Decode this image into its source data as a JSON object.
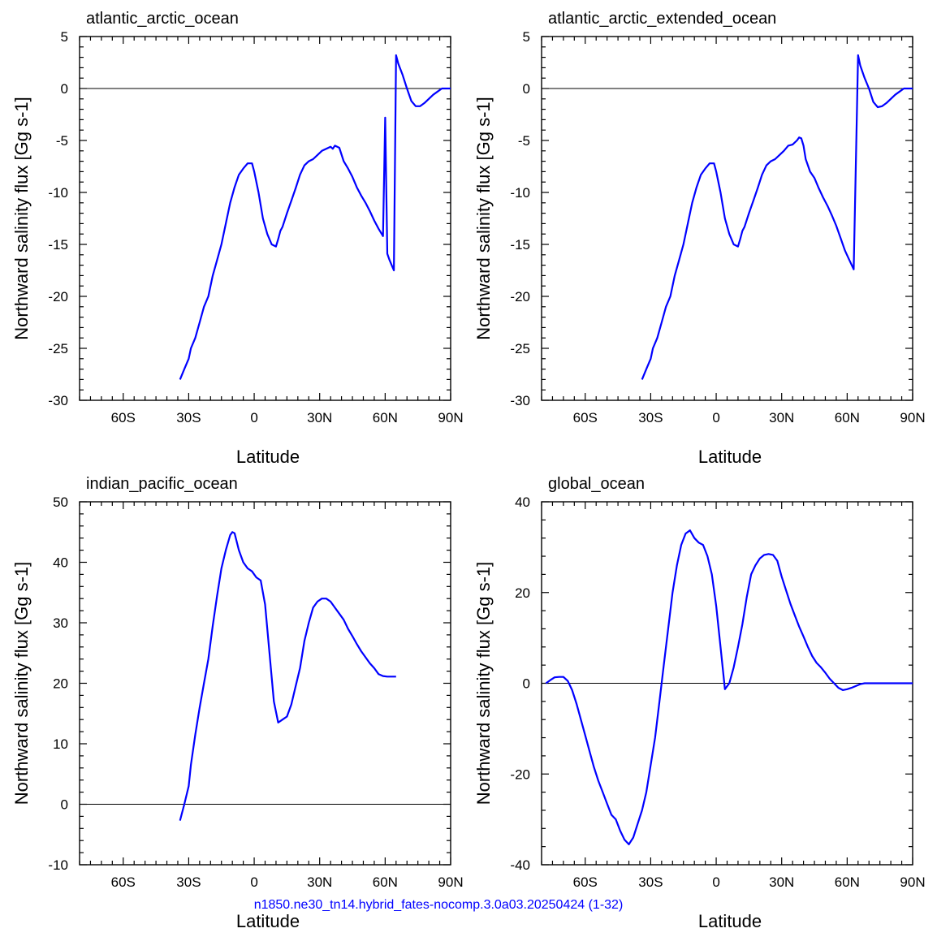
{
  "footer": "n1850.ne30_tn14.hybrid_fates-nocomp.3.0a03.20250424 (1-32)",
  "colors": {
    "line": "#0000ff",
    "axis": "#000000",
    "footer": "#0000ff"
  },
  "chart_data": [
    {
      "type": "line",
      "title": "atlantic_arctic_ocean",
      "xlabel": "Latitude",
      "ylabel": "Northward salinity flux [Gg s-1]",
      "xlim": [
        -80,
        90
      ],
      "ylim": [
        -30,
        5
      ],
      "xticks": [
        -60,
        -30,
        0,
        30,
        60,
        90
      ],
      "xtick_labels": [
        "60S",
        "30S",
        "0",
        "30N",
        "60N",
        "90N"
      ],
      "yticks": [
        5,
        0,
        -5,
        -10,
        -15,
        -20,
        -25,
        -30
      ],
      "ytick_labels": [
        "5",
        "0",
        "-5",
        "-10",
        "-15",
        "-20",
        "-25",
        "-30"
      ],
      "zero_line": true,
      "x": [
        -34,
        -32,
        -30,
        -29,
        -27,
        -25,
        -23,
        -21,
        -19,
        -17,
        -15,
        -13,
        -11,
        -9,
        -7,
        -5,
        -3,
        -1,
        0,
        2,
        4,
        6,
        8,
        10,
        11,
        12,
        13,
        15,
        17,
        19,
        21,
        23,
        25,
        27,
        29,
        31,
        33,
        35,
        36,
        37,
        39,
        41,
        43,
        45,
        47,
        49,
        51,
        53,
        55,
        57,
        59,
        60,
        61,
        62,
        64,
        65,
        66,
        68,
        70,
        72,
        74,
        76,
        78,
        80,
        82,
        84,
        86,
        88,
        90
      ],
      "y": [
        -28,
        -27,
        -26,
        -25,
        -24,
        -22.5,
        -21,
        -20,
        -18,
        -16.5,
        -15,
        -13,
        -11,
        -9.5,
        -8.3,
        -7.7,
        -7.2,
        -7.2,
        -8,
        -10,
        -12.5,
        -14,
        -15,
        -15.2,
        -14.5,
        -13.7,
        -13.3,
        -12,
        -10.8,
        -9.6,
        -8.3,
        -7.4,
        -7,
        -6.8,
        -6.4,
        -6,
        -5.8,
        -5.6,
        -5.8,
        -5.5,
        -5.7,
        -7,
        -7.7,
        -8.5,
        -9.5,
        -10.3,
        -11,
        -11.8,
        -12.7,
        -13.5,
        -14.2,
        -2.8,
        -15.9,
        -16.5,
        -17.5,
        3.2,
        2.4,
        1.3,
        0,
        -1.2,
        -1.7,
        -1.7,
        -1.4,
        -1,
        -0.6,
        -0.3,
        0,
        0,
        0
      ]
    },
    {
      "type": "line",
      "title": "atlantic_arctic_extended_ocean",
      "xlabel": "Latitude",
      "ylabel": "Northward salinity flux [Gg s-1]",
      "xlim": [
        -80,
        90
      ],
      "ylim": [
        -30,
        5
      ],
      "xticks": [
        -60,
        -30,
        0,
        30,
        60,
        90
      ],
      "xtick_labels": [
        "60S",
        "30S",
        "0",
        "30N",
        "60N",
        "90N"
      ],
      "yticks": [
        5,
        0,
        -5,
        -10,
        -15,
        -20,
        -25,
        -30
      ],
      "ytick_labels": [
        "5",
        "0",
        "-5",
        "-10",
        "-15",
        "-20",
        "-25",
        "-30"
      ],
      "zero_line": true,
      "x": [
        -34,
        -32,
        -30,
        -29,
        -27,
        -25,
        -23,
        -21,
        -19,
        -17,
        -15,
        -13,
        -11,
        -9,
        -7,
        -5,
        -3,
        -1,
        0,
        2,
        4,
        6,
        8,
        10,
        11,
        12,
        13,
        15,
        17,
        19,
        21,
        23,
        25,
        27,
        29,
        31,
        33,
        35,
        37,
        38,
        39,
        40,
        41,
        43,
        45,
        47,
        49,
        51,
        53,
        55,
        57,
        59,
        61,
        63,
        65,
        66,
        68,
        70,
        72,
        74,
        76,
        78,
        80,
        82,
        84,
        86,
        88,
        90
      ],
      "y": [
        -28,
        -27,
        -26,
        -25,
        -24,
        -22.5,
        -21,
        -20,
        -18,
        -16.5,
        -15,
        -13,
        -11,
        -9.5,
        -8.3,
        -7.7,
        -7.2,
        -7.2,
        -8,
        -10,
        -12.5,
        -14,
        -15,
        -15.2,
        -14.5,
        -13.7,
        -13.3,
        -12,
        -10.8,
        -9.6,
        -8.3,
        -7.4,
        -7,
        -6.8,
        -6.4,
        -6,
        -5.5,
        -5.4,
        -5,
        -4.7,
        -4.8,
        -5.5,
        -6.8,
        -8,
        -8.6,
        -9.6,
        -10.5,
        -11.3,
        -12.2,
        -13.2,
        -14.4,
        -15.6,
        -16.5,
        -17.4,
        3.2,
        2.2,
        1,
        0,
        -1.3,
        -1.8,
        -1.7,
        -1.4,
        -1,
        -0.6,
        -0.3,
        0,
        0,
        0
      ]
    },
    {
      "type": "line",
      "title": "indian_pacific_ocean",
      "xlabel": "Latitude",
      "ylabel": "Northward salinity flux [Gg s-1]",
      "xlim": [
        -80,
        90
      ],
      "ylim": [
        -10,
        50
      ],
      "xticks": [
        -60,
        -30,
        0,
        30,
        60,
        90
      ],
      "xtick_labels": [
        "60S",
        "30S",
        "0",
        "30N",
        "60N",
        "90N"
      ],
      "yticks": [
        50,
        40,
        30,
        20,
        10,
        0,
        -10
      ],
      "ytick_labels": [
        "50",
        "40",
        "30",
        "20",
        "10",
        "0",
        "-10"
      ],
      "zero_line": true,
      "x": [
        -34,
        -32,
        -30,
        -29,
        -27,
        -25,
        -23,
        -21,
        -19,
        -17,
        -15,
        -13,
        -11,
        -10,
        -9,
        -7,
        -5,
        -3,
        -1,
        1,
        3,
        5,
        7,
        9,
        11,
        13,
        15,
        17,
        19,
        21,
        23,
        25,
        27,
        29,
        31,
        33,
        35,
        37,
        39,
        41,
        43,
        45,
        47,
        49,
        51,
        53,
        55,
        57,
        59,
        61,
        63,
        65
      ],
      "y": [
        -2.7,
        0,
        3,
        6.5,
        11.5,
        16,
        20,
        24,
        29.5,
        34.5,
        39,
        42,
        44.5,
        45,
        44.8,
        42,
        40,
        39,
        38.5,
        37.5,
        37,
        33,
        25,
        17,
        13.5,
        14,
        14.5,
        16.5,
        19.5,
        22.5,
        27,
        30,
        32.5,
        33.5,
        34,
        34,
        33.5,
        32.5,
        31.5,
        30.5,
        29,
        27.8,
        26.5,
        25.3,
        24.3,
        23.3,
        22.5,
        21.5,
        21.2,
        21.1,
        21.1,
        21.1
      ]
    },
    {
      "type": "line",
      "title": "global_ocean",
      "xlabel": "Latitude",
      "ylabel": "Northward salinity flux [Gg s-1]",
      "xlim": [
        -80,
        90
      ],
      "ylim": [
        -40,
        40
      ],
      "xticks": [
        -60,
        -30,
        0,
        30,
        60,
        90
      ],
      "xtick_labels": [
        "60S",
        "30S",
        "0",
        "30N",
        "60N",
        "90N"
      ],
      "yticks": [
        40,
        20,
        0,
        -20,
        -40
      ],
      "ytick_labels": [
        "40",
        "20",
        "0",
        "-20",
        "-40"
      ],
      "zero_line": true,
      "x": [
        -78,
        -76,
        -74,
        -72,
        -70,
        -68,
        -66,
        -64,
        -62,
        -60,
        -58,
        -56,
        -54,
        -52,
        -50,
        -48,
        -46,
        -44,
        -42,
        -40,
        -38,
        -36,
        -34,
        -32,
        -30,
        -28,
        -26,
        -24,
        -22,
        -20,
        -18,
        -16,
        -14,
        -12,
        -10,
        -8,
        -6,
        -4,
        -2,
        0,
        2,
        4,
        6,
        8,
        10,
        12,
        14,
        16,
        18,
        20,
        22,
        24,
        26,
        28,
        30,
        32,
        34,
        36,
        38,
        40,
        42,
        44,
        46,
        48,
        50,
        52,
        54,
        56,
        58,
        60,
        62,
        64,
        66,
        68,
        70,
        72,
        74,
        76,
        78,
        80,
        82,
        84,
        86,
        88,
        90
      ],
      "y": [
        0,
        0.7,
        1.3,
        1.4,
        1.4,
        0.5,
        -1.5,
        -4.5,
        -8,
        -11.5,
        -15,
        -18.5,
        -21.5,
        -24,
        -26.5,
        -29,
        -30,
        -32.5,
        -34.5,
        -35.5,
        -34,
        -31,
        -28,
        -24,
        -18,
        -12,
        -4,
        4,
        12,
        20,
        26,
        30.5,
        33,
        33.7,
        32,
        31,
        30.5,
        28,
        24,
        17,
        8,
        -1.3,
        0,
        3.5,
        8,
        13,
        19,
        24,
        26,
        27.5,
        28.3,
        28.5,
        28.3,
        27,
        23.5,
        20.5,
        17.5,
        15,
        12.5,
        10.3,
        8,
        6,
        4.5,
        3.5,
        2.3,
        1,
        0,
        -1,
        -1.5,
        -1.3,
        -1,
        -0.6,
        -0.2,
        0,
        0,
        0,
        0,
        0,
        0,
        0,
        0,
        0,
        0,
        0,
        0
      ]
    }
  ]
}
